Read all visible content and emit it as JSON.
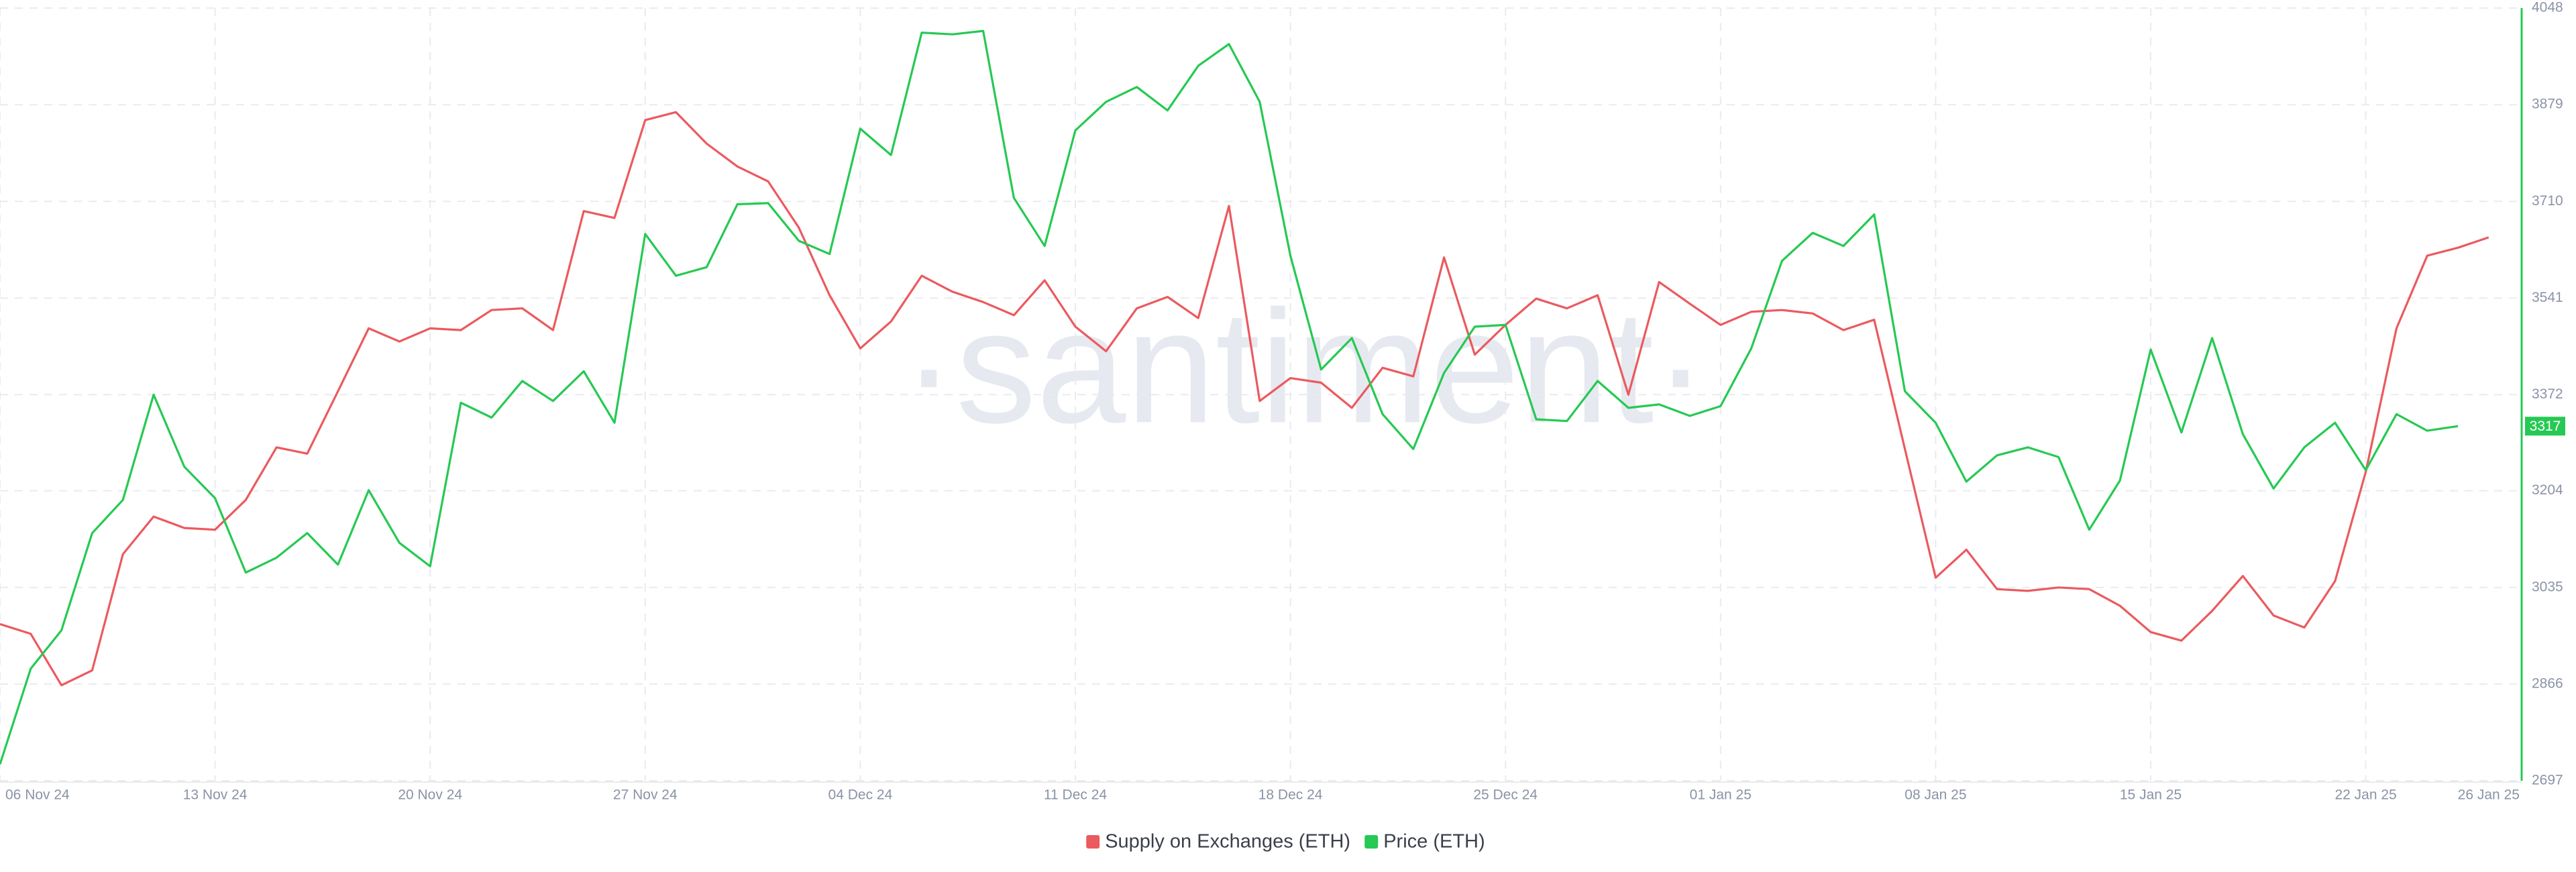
{
  "chart_data": {
    "type": "line",
    "watermark": "·santiment·",
    "categories": [
      "06 Nov 24",
      null,
      null,
      null,
      null,
      null,
      null,
      "13 Nov 24",
      null,
      null,
      null,
      null,
      null,
      null,
      "20 Nov 24",
      null,
      null,
      null,
      null,
      null,
      null,
      "27 Nov 24",
      null,
      null,
      null,
      null,
      null,
      null,
      "04 Dec 24",
      null,
      null,
      null,
      null,
      null,
      null,
      "11 Dec 24",
      null,
      null,
      null,
      null,
      null,
      null,
      "18 Dec 24",
      null,
      null,
      null,
      null,
      null,
      null,
      "25 Dec 24",
      null,
      null,
      null,
      null,
      null,
      null,
      "01 Jan 25",
      null,
      null,
      null,
      null,
      null,
      null,
      "08 Jan 25",
      null,
      null,
      null,
      null,
      null,
      null,
      "15 Jan 25",
      null,
      null,
      null,
      null,
      null,
      null,
      "22 Jan 25",
      null,
      null,
      null,
      "26 Jan 25"
    ],
    "series": [
      {
        "name": "Supply on Exchanges (ETH)",
        "color": "#eb5a5f",
        "values": [
          2971,
          2954,
          2864,
          2890,
          3093,
          3159,
          3139,
          3136,
          3188,
          3280,
          3269,
          3378,
          3488,
          3465,
          3488,
          3485,
          3520,
          3523,
          3485,
          3693,
          3681,
          3852,
          3866,
          3811,
          3771,
          3745,
          3664,
          3546,
          3453,
          3500,
          3580,
          3552,
          3534,
          3511,
          3572,
          3491,
          3448,
          3523,
          3543,
          3506,
          3702,
          3361,
          3401,
          3393,
          3349,
          3419,
          3404,
          3612,
          3442,
          3494,
          3540,
          3523,
          3546,
          3372,
          3569,
          3531,
          3494,
          3517,
          3520,
          3514,
          3485,
          3503,
          3277,
          3052,
          3101,
          3032,
          3029,
          3035,
          3032,
          3003,
          2957,
          2942,
          2994,
          3055,
          2986,
          2965,
          3046,
          3237,
          3488,
          3615,
          3629,
          3647
        ]
      },
      {
        "name": "Price (ETH)",
        "color": "#26c953",
        "show_last_value": true,
        "values": [
          2726,
          2893,
          2960,
          3130,
          3188,
          3372,
          3246,
          3191,
          3061,
          3087,
          3130,
          3075,
          3205,
          3113,
          3072,
          3358,
          3332,
          3396,
          3361,
          3413,
          3323,
          3653,
          3580,
          3595,
          3705,
          3707,
          3641,
          3618,
          3837,
          3791,
          4005,
          4002,
          4008,
          3716,
          3632,
          3834,
          3884,
          3910,
          3869,
          3947,
          3985,
          3884,
          3615,
          3416,
          3471,
          3338,
          3277,
          3410,
          3491,
          3494,
          3329,
          3326,
          3396,
          3349,
          3355,
          3335,
          3352,
          3453,
          3606,
          3655,
          3632,
          3687,
          3378,
          3323,
          3220,
          3266,
          3280,
          3263,
          3136,
          3222,
          3451,
          3306,
          3471,
          3303,
          3208,
          3280,
          3323,
          3240,
          3338,
          3309,
          3317,
          null
        ]
      }
    ],
    "ylim": [
      2697,
      4048
    ],
    "yticks": [
      2697,
      2866,
      3035,
      3204,
      3372,
      3541,
      3710,
      3879,
      4048
    ],
    "yaxis_position": "right",
    "axis_color": "#26c953",
    "grid": true,
    "legend": "bottom"
  }
}
